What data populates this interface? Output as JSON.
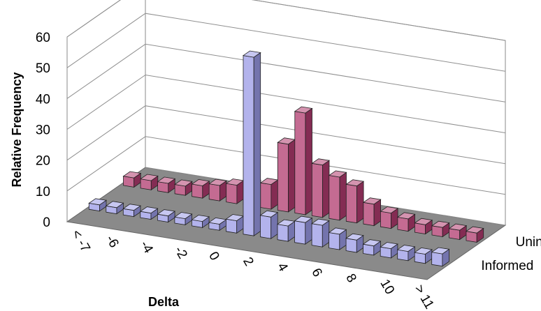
{
  "chart_data": {
    "type": "bar",
    "subtype": "3d-grouped-rows",
    "title": "",
    "xlabel": "Delta",
    "ylabel": "Relative Frequency",
    "ylim": [
      0,
      60
    ],
    "yticks": [
      "0",
      "10",
      "20",
      "30",
      "40",
      "50",
      "60"
    ],
    "categories": [
      "< -7",
      "-7",
      "-6",
      "-5",
      "-4",
      "-3",
      "-2",
      "-1",
      "0",
      "1",
      "2",
      "3",
      "4",
      "5",
      "6",
      "7",
      "8",
      "9",
      "10",
      "11",
      "> 11"
    ],
    "x_tick_labels": [
      "< -7",
      "-6",
      "-4",
      "-2",
      "0",
      "2",
      "4",
      "6",
      "8",
      "10",
      "> 11"
    ],
    "series": [
      {
        "name": "Uninformed",
        "color": "#b03a6e",
        "values": [
          3,
          3,
          3,
          3,
          4,
          5,
          6,
          7,
          8,
          22,
          33,
          17,
          14,
          12,
          7,
          5,
          4,
          3,
          3,
          3,
          3
        ]
      },
      {
        "name": "Informed",
        "color": "#9a9ae6",
        "values": [
          2,
          2,
          2,
          2,
          2,
          2,
          2,
          2,
          4,
          58,
          7,
          5,
          7,
          7,
          5,
          4,
          3,
          3,
          3,
          3,
          4
        ]
      }
    ],
    "grid": true,
    "colors": {
      "floor": "#8a8a8a",
      "wall": "#ffffff",
      "gridline": "#8f8f8f"
    }
  }
}
